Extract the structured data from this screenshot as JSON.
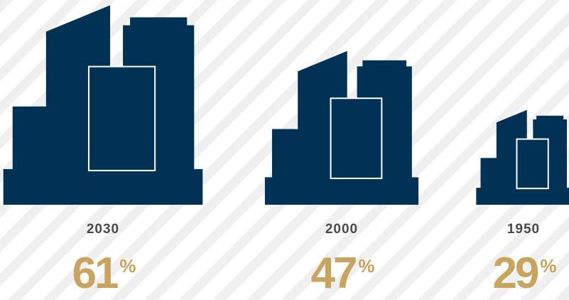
{
  "chart_data": {
    "type": "pictograph",
    "categories": [
      "2030",
      "2000",
      "1950"
    ],
    "values": [
      61,
      47,
      29
    ],
    "value_labels": [
      "61%",
      "47%",
      "29%"
    ],
    "color": "#023156",
    "label_color": "#c9a45f"
  }
}
